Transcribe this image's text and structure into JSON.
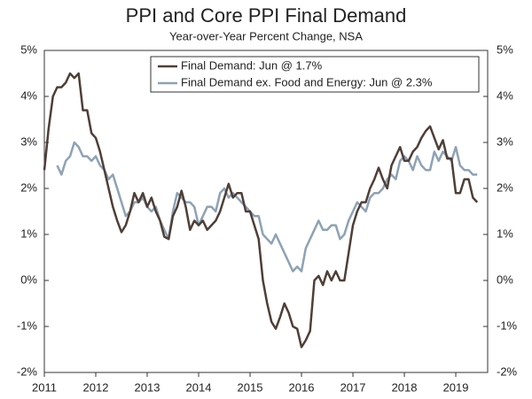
{
  "chart_data": {
    "type": "line",
    "title": "PPI and Core PPI Final Demand",
    "subtitle": "Year-over-Year Percent Change, NSA",
    "x": [
      2011,
      2011.083,
      2011.167,
      2011.25,
      2011.333,
      2011.417,
      2011.5,
      2011.583,
      2011.667,
      2011.75,
      2011.833,
      2011.917,
      2012,
      2012.083,
      2012.167,
      2012.25,
      2012.333,
      2012.417,
      2012.5,
      2012.583,
      2012.667,
      2012.75,
      2012.833,
      2012.917,
      2013,
      2013.083,
      2013.167,
      2013.25,
      2013.333,
      2013.417,
      2013.5,
      2013.583,
      2013.667,
      2013.75,
      2013.833,
      2013.917,
      2014,
      2014.083,
      2014.167,
      2014.25,
      2014.333,
      2014.417,
      2014.5,
      2014.583,
      2014.667,
      2014.75,
      2014.833,
      2014.917,
      2015,
      2015.083,
      2015.167,
      2015.25,
      2015.333,
      2015.417,
      2015.5,
      2015.583,
      2015.667,
      2015.75,
      2015.833,
      2015.917,
      2016,
      2016.083,
      2016.167,
      2016.25,
      2016.333,
      2016.417,
      2016.5,
      2016.583,
      2016.667,
      2016.75,
      2016.833,
      2016.917,
      2017,
      2017.083,
      2017.167,
      2017.25,
      2017.333,
      2017.417,
      2017.5,
      2017.583,
      2017.667,
      2017.75,
      2017.833,
      2017.917,
      2018,
      2018.083,
      2018.167,
      2018.25,
      2018.333,
      2018.417,
      2018.5,
      2018.583,
      2018.667,
      2018.75,
      2018.833,
      2018.917,
      2019,
      2019.083,
      2019.167,
      2019.25,
      2019.333,
      2019.417
    ],
    "series": [
      {
        "name": "Final Demand: Jun @ 1.7%",
        "color": "#4e3f37",
        "values": [
          2.4,
          3.3,
          4.0,
          4.2,
          4.2,
          4.3,
          4.5,
          4.4,
          4.5,
          3.7,
          3.7,
          3.2,
          3.1,
          2.8,
          2.4,
          2.0,
          1.6,
          1.3,
          1.05,
          1.2,
          1.5,
          1.9,
          1.7,
          1.9,
          1.6,
          1.8,
          1.5,
          1.3,
          0.95,
          0.9,
          1.4,
          1.6,
          1.95,
          1.6,
          1.1,
          1.3,
          1.2,
          1.3,
          1.1,
          1.2,
          1.3,
          1.5,
          1.8,
          2.1,
          1.8,
          1.9,
          1.9,
          1.5,
          1.5,
          1.2,
          0.9,
          0.0,
          -0.5,
          -0.9,
          -1.05,
          -0.8,
          -0.5,
          -0.7,
          -1.0,
          -1.05,
          -1.45,
          -1.3,
          -1.1,
          0.0,
          0.1,
          -0.1,
          0.2,
          0.0,
          0.2,
          0.0,
          0.0,
          0.6,
          1.2,
          1.5,
          1.7,
          1.7,
          2.0,
          2.2,
          2.45,
          2.2,
          2.0,
          2.5,
          2.7,
          2.9,
          2.6,
          2.6,
          2.8,
          2.9,
          3.1,
          3.25,
          3.35,
          3.1,
          2.85,
          3.05,
          2.65,
          2.65,
          1.9,
          1.9,
          2.2,
          2.2,
          1.8,
          1.7
        ]
      },
      {
        "name": "Final Demand ex. Food and Energy: Jun @ 2.3%",
        "color": "#8ea2b4",
        "values": [
          null,
          null,
          null,
          2.5,
          2.3,
          2.6,
          2.7,
          3.0,
          2.9,
          2.7,
          2.7,
          2.6,
          2.7,
          2.5,
          2.4,
          2.2,
          2.3,
          2.0,
          1.7,
          1.4,
          1.5,
          1.7,
          1.7,
          1.8,
          1.6,
          1.5,
          1.6,
          1.3,
          1.1,
          0.9,
          1.5,
          1.9,
          1.8,
          1.7,
          1.7,
          1.6,
          1.2,
          1.4,
          1.6,
          1.6,
          1.5,
          1.9,
          2.0,
          1.8,
          1.9,
          1.8,
          1.7,
          1.6,
          1.5,
          1.4,
          1.4,
          1.0,
          0.9,
          0.8,
          1.0,
          0.8,
          0.6,
          0.4,
          0.2,
          0.3,
          0.2,
          0.7,
          0.9,
          1.1,
          1.3,
          1.1,
          1.1,
          1.2,
          1.2,
          0.9,
          1.0,
          1.3,
          1.5,
          1.7,
          1.6,
          1.5,
          1.8,
          1.9,
          1.9,
          2.0,
          2.2,
          2.3,
          2.2,
          2.6,
          2.7,
          2.6,
          2.4,
          2.7,
          2.5,
          2.4,
          2.4,
          2.8,
          2.6,
          2.8,
          2.7,
          2.6,
          2.9,
          2.5,
          2.4,
          2.4,
          2.3,
          2.3
        ]
      }
    ],
    "xlim": [
      2011,
      2019.62
    ],
    "xticks": [
      2011,
      2012,
      2013,
      2014,
      2015,
      2016,
      2017,
      2018,
      2019
    ],
    "ylim": [
      -2,
      5
    ],
    "yticks": [
      {
        "value": -2,
        "label": "-2%"
      },
      {
        "value": -1,
        "label": "-1%"
      },
      {
        "value": 0,
        "label": "0%"
      },
      {
        "value": 1,
        "label": "1%"
      },
      {
        "value": 2,
        "label": "2%"
      },
      {
        "value": 3,
        "label": "3%"
      },
      {
        "value": 4,
        "label": "4%"
      },
      {
        "value": 5,
        "label": "5%"
      }
    ],
    "y2lim": [
      -2,
      5
    ],
    "y2ticks": [
      {
        "value": -2,
        "label": "-2%"
      },
      {
        "value": -1,
        "label": "-1%"
      },
      {
        "value": 0,
        "label": "0%"
      },
      {
        "value": 1,
        "label": "1%"
      },
      {
        "value": 2,
        "label": "2%"
      },
      {
        "value": 3,
        "label": "3%"
      },
      {
        "value": 4,
        "label": "4%"
      },
      {
        "value": 5,
        "label": "5%"
      }
    ],
    "legend": "top-right"
  }
}
